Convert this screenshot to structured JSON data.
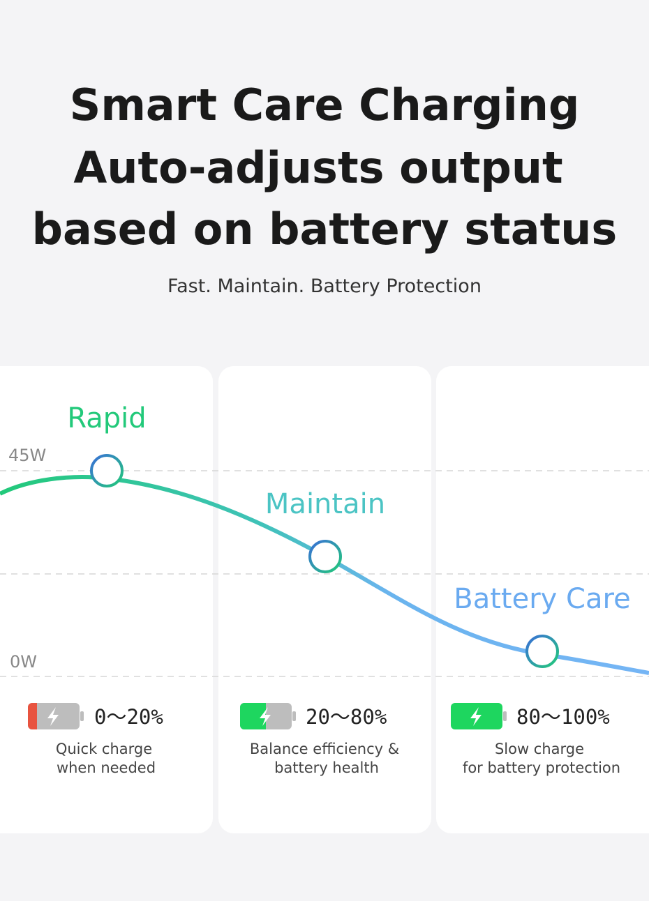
{
  "header": {
    "title": [
      "Smart Care Charging",
      "Auto-adjusts output",
      "based on battery status"
    ],
    "subtitle": "Fast. Maintain. Battery Protection"
  },
  "axis": {
    "top": "45W",
    "bottom": "0W"
  },
  "stages": [
    {
      "label": "Rapid",
      "range": "0～20%",
      "description": [
        "Quick charge",
        "when needed"
      ]
    },
    {
      "label": "Maintain",
      "range": "20～80%",
      "description": [
        "Balance efficiency &",
        "battery health"
      ]
    },
    {
      "label": "Battery Care",
      "range": "80～100%",
      "description": [
        "Slow charge",
        "for battery protection"
      ]
    }
  ]
}
